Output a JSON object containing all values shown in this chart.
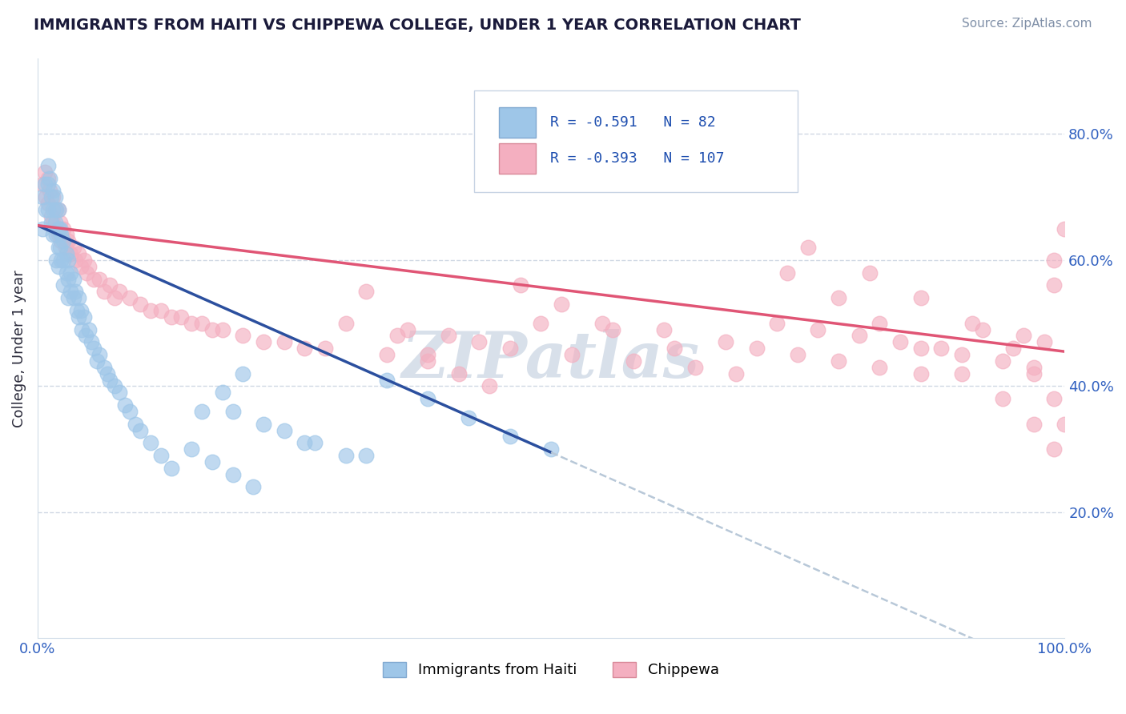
{
  "title": "IMMIGRANTS FROM HAITI VS CHIPPEWA COLLEGE, UNDER 1 YEAR CORRELATION CHART",
  "source_text": "Source: ZipAtlas.com",
  "ylabel": "College, Under 1 year",
  "R1": "-0.591",
  "N1": "82",
  "R2": "-0.393",
  "N2": "107",
  "color_haiti": "#9ec6e8",
  "color_chippewa": "#f4afc0",
  "color_line_haiti": "#2b4f9e",
  "color_line_chippewa": "#e05575",
  "color_line_dashed": "#b8c8d8",
  "legend_label1": "Immigrants from Haiti",
  "legend_label2": "Chippewa",
  "title_color": "#1a1a3a",
  "watermark_text": "ZIPatlas",
  "watermark_color": "#d4dde8",
  "grid_color": "#d0d8e4",
  "axis_label_color": "#3060c0",
  "tick_color": "#3060c0",
  "xlim": [
    0.0,
    1.0
  ],
  "ylim": [
    0.0,
    0.92
  ],
  "ytick_values": [
    0.2,
    0.4,
    0.6,
    0.8
  ],
  "haiti_line_start_x": 0.0,
  "haiti_line_end_x": 0.5,
  "haiti_line_start_y": 0.655,
  "haiti_line_end_y": 0.295,
  "chippewa_line_start_x": 0.0,
  "chippewa_line_end_x": 1.0,
  "chippewa_line_start_y": 0.655,
  "chippewa_line_end_y": 0.455,
  "haiti_x": [
    0.005,
    0.005,
    0.007,
    0.008,
    0.01,
    0.01,
    0.01,
    0.012,
    0.013,
    0.013,
    0.015,
    0.015,
    0.015,
    0.017,
    0.017,
    0.018,
    0.018,
    0.018,
    0.02,
    0.02,
    0.02,
    0.02,
    0.022,
    0.022,
    0.023,
    0.023,
    0.025,
    0.025,
    0.025,
    0.028,
    0.028,
    0.03,
    0.03,
    0.03,
    0.032,
    0.032,
    0.035,
    0.035,
    0.037,
    0.038,
    0.04,
    0.04,
    0.042,
    0.043,
    0.045,
    0.047,
    0.05,
    0.052,
    0.055,
    0.058,
    0.06,
    0.065,
    0.068,
    0.07,
    0.075,
    0.08,
    0.085,
    0.09,
    0.095,
    0.1,
    0.11,
    0.12,
    0.13,
    0.15,
    0.17,
    0.19,
    0.21,
    0.24,
    0.27,
    0.3,
    0.34,
    0.38,
    0.42,
    0.46,
    0.5,
    0.19,
    0.22,
    0.26,
    0.32,
    0.2,
    0.18,
    0.16
  ],
  "haiti_y": [
    0.7,
    0.65,
    0.72,
    0.68,
    0.75,
    0.72,
    0.68,
    0.73,
    0.7,
    0.66,
    0.71,
    0.68,
    0.64,
    0.7,
    0.66,
    0.68,
    0.64,
    0.6,
    0.68,
    0.65,
    0.62,
    0.59,
    0.65,
    0.62,
    0.64,
    0.6,
    0.63,
    0.6,
    0.56,
    0.61,
    0.58,
    0.6,
    0.57,
    0.54,
    0.58,
    0.55,
    0.57,
    0.54,
    0.55,
    0.52,
    0.54,
    0.51,
    0.52,
    0.49,
    0.51,
    0.48,
    0.49,
    0.47,
    0.46,
    0.44,
    0.45,
    0.43,
    0.42,
    0.41,
    0.4,
    0.39,
    0.37,
    0.36,
    0.34,
    0.33,
    0.31,
    0.29,
    0.27,
    0.3,
    0.28,
    0.26,
    0.24,
    0.33,
    0.31,
    0.29,
    0.41,
    0.38,
    0.35,
    0.32,
    0.3,
    0.36,
    0.34,
    0.31,
    0.29,
    0.42,
    0.39,
    0.36
  ],
  "chippewa_x": [
    0.005,
    0.007,
    0.008,
    0.01,
    0.01,
    0.012,
    0.013,
    0.015,
    0.015,
    0.017,
    0.018,
    0.02,
    0.02,
    0.022,
    0.023,
    0.025,
    0.027,
    0.028,
    0.03,
    0.032,
    0.035,
    0.037,
    0.04,
    0.042,
    0.045,
    0.048,
    0.05,
    0.055,
    0.06,
    0.065,
    0.07,
    0.075,
    0.08,
    0.09,
    0.1,
    0.11,
    0.12,
    0.13,
    0.14,
    0.15,
    0.16,
    0.17,
    0.18,
    0.2,
    0.22,
    0.24,
    0.26,
    0.28,
    0.3,
    0.32,
    0.34,
    0.36,
    0.38,
    0.4,
    0.43,
    0.46,
    0.49,
    0.52,
    0.55,
    0.58,
    0.61,
    0.64,
    0.67,
    0.7,
    0.72,
    0.74,
    0.76,
    0.78,
    0.8,
    0.82,
    0.84,
    0.86,
    0.88,
    0.9,
    0.92,
    0.94,
    0.96,
    0.97,
    0.98,
    0.99,
    0.99,
    1.0,
    0.35,
    0.38,
    0.41,
    0.44,
    0.47,
    0.51,
    0.56,
    0.62,
    0.68,
    0.73,
    0.78,
    0.82,
    0.86,
    0.9,
    0.94,
    0.97,
    0.99,
    0.75,
    0.81,
    0.86,
    0.91,
    0.95,
    0.97,
    0.99,
    1.0
  ],
  "chippewa_y": [
    0.72,
    0.74,
    0.7,
    0.73,
    0.69,
    0.71,
    0.67,
    0.7,
    0.66,
    0.68,
    0.65,
    0.68,
    0.64,
    0.66,
    0.63,
    0.65,
    0.62,
    0.64,
    0.63,
    0.61,
    0.62,
    0.6,
    0.61,
    0.59,
    0.6,
    0.58,
    0.59,
    0.57,
    0.57,
    0.55,
    0.56,
    0.54,
    0.55,
    0.54,
    0.53,
    0.52,
    0.52,
    0.51,
    0.51,
    0.5,
    0.5,
    0.49,
    0.49,
    0.48,
    0.47,
    0.47,
    0.46,
    0.46,
    0.5,
    0.55,
    0.45,
    0.49,
    0.44,
    0.48,
    0.47,
    0.46,
    0.5,
    0.45,
    0.5,
    0.44,
    0.49,
    0.43,
    0.47,
    0.46,
    0.5,
    0.45,
    0.49,
    0.44,
    0.48,
    0.43,
    0.47,
    0.42,
    0.46,
    0.45,
    0.49,
    0.44,
    0.48,
    0.43,
    0.47,
    0.6,
    0.56,
    0.65,
    0.48,
    0.45,
    0.42,
    0.4,
    0.56,
    0.53,
    0.49,
    0.46,
    0.42,
    0.58,
    0.54,
    0.5,
    0.46,
    0.42,
    0.38,
    0.34,
    0.3,
    0.62,
    0.58,
    0.54,
    0.5,
    0.46,
    0.42,
    0.38,
    0.34
  ]
}
